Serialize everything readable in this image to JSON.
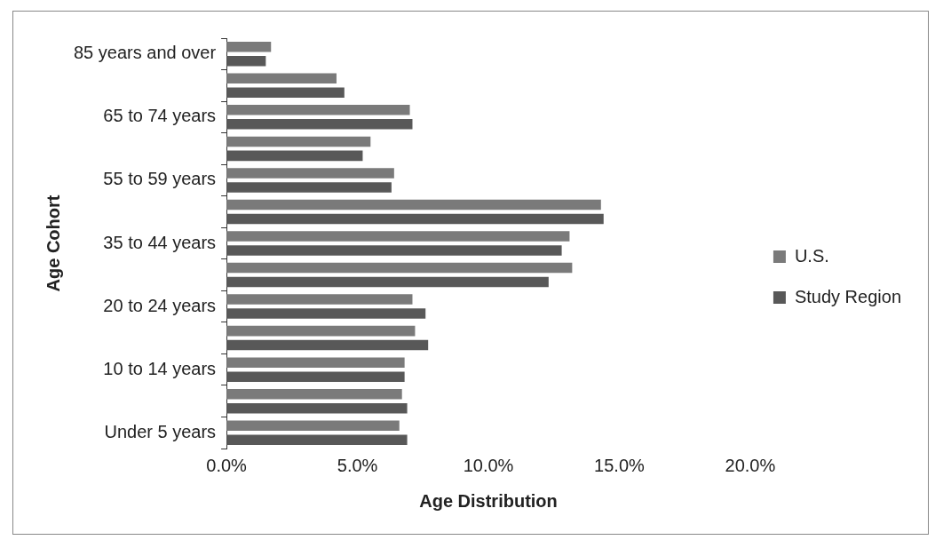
{
  "chart_data": {
    "type": "bar",
    "orientation": "horizontal",
    "xlabel": "Age Distribution",
    "ylabel": "Age Cohort",
    "categories": [
      "85 years and over",
      null,
      "65 to 74 years",
      null,
      "55 to 59 years",
      null,
      "35 to 44 years",
      null,
      "20 to 24 years",
      null,
      "10 to 14 years",
      null,
      "Under 5 years"
    ],
    "series": [
      {
        "name": "U.S.",
        "color": "#7a7a7a",
        "values": [
          1.7,
          4.2,
          7.0,
          5.5,
          6.4,
          14.3,
          13.1,
          13.2,
          7.1,
          7.2,
          6.8,
          6.7,
          6.6
        ]
      },
      {
        "name": "Study Region",
        "color": "#585858",
        "values": [
          1.5,
          4.5,
          7.1,
          5.2,
          6.3,
          14.4,
          12.8,
          12.3,
          7.6,
          7.7,
          6.8,
          6.9,
          6.9
        ]
      }
    ],
    "xlim": [
      0,
      20
    ],
    "xticks": [
      {
        "value": 0,
        "label": "0.0%"
      },
      {
        "value": 5,
        "label": "5.0%"
      },
      {
        "value": 10,
        "label": "10.0%"
      },
      {
        "value": 15,
        "label": "15.0%"
      },
      {
        "value": 20,
        "label": "20.0%"
      }
    ],
    "grid": false,
    "legend": "right"
  }
}
